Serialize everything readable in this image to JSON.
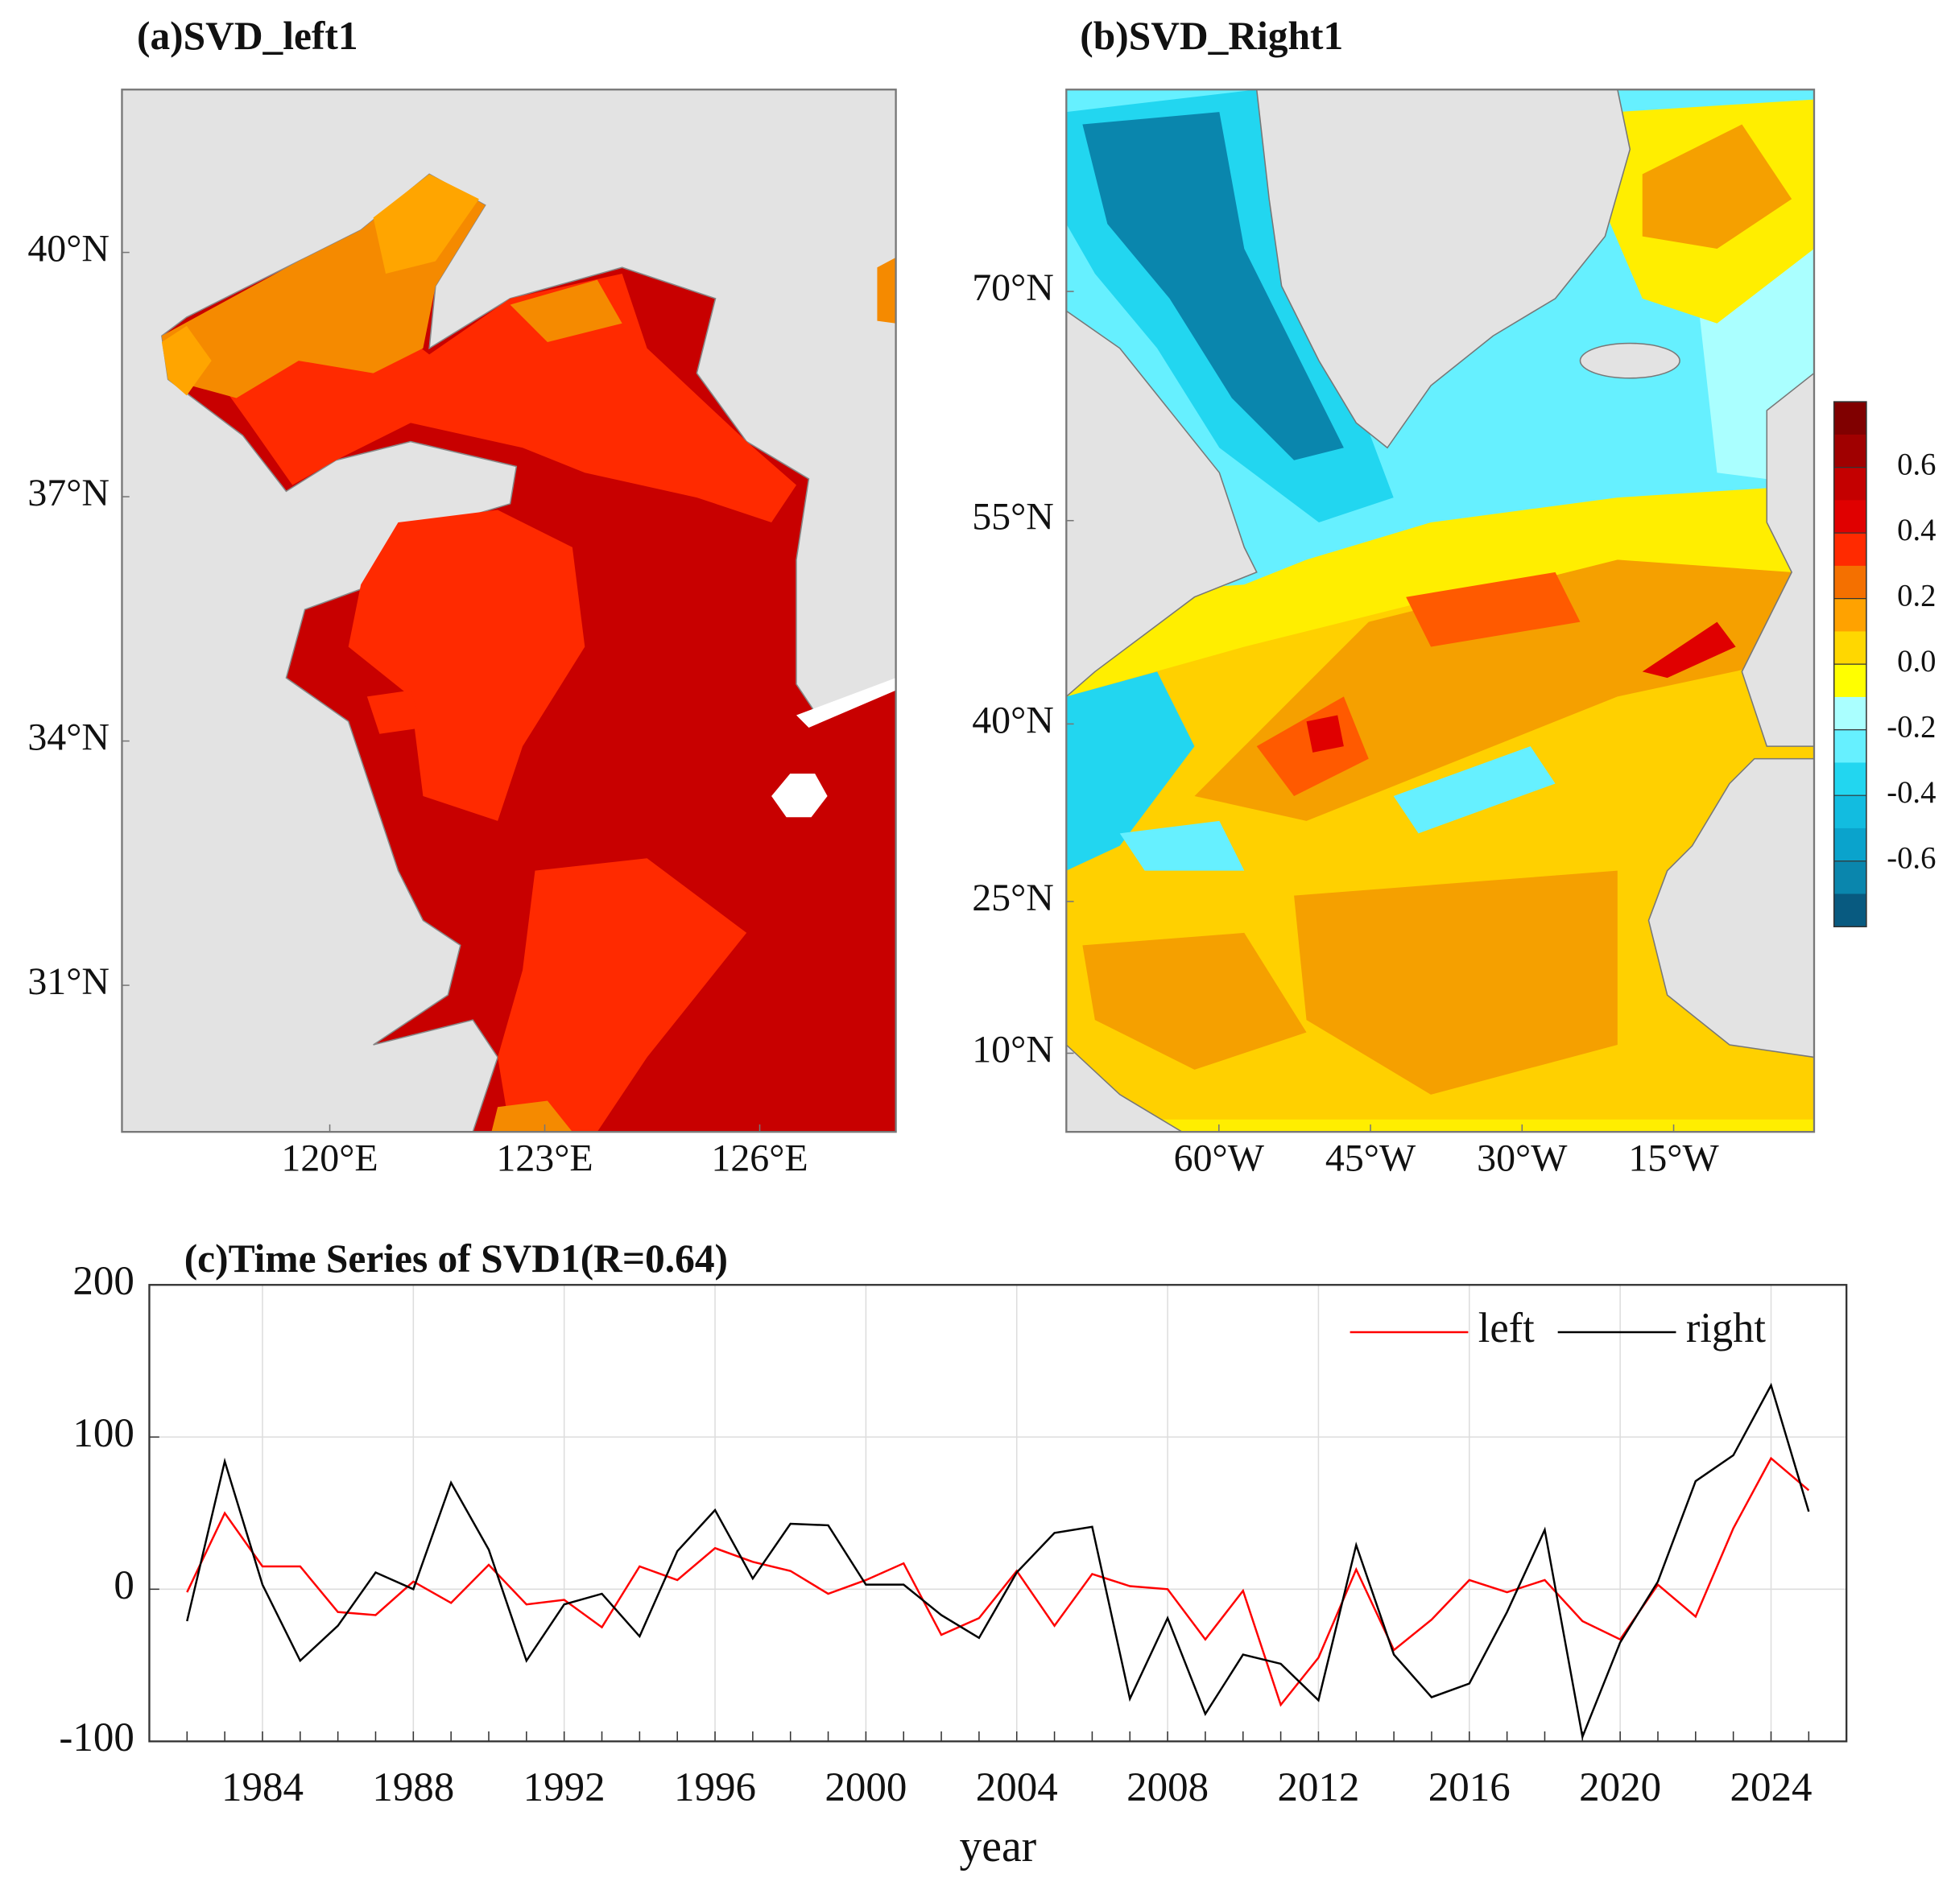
{
  "chart_data": [
    {
      "type": "contour_map",
      "title": "(a)SVD_left1",
      "xlim": [
        117.1,
        127.9
      ],
      "ylim": [
        29.2,
        42
      ],
      "xticks": [
        {
          "value": 120,
          "label": "120°E"
        },
        {
          "value": 123,
          "label": "123°E"
        },
        {
          "value": 126,
          "label": "126°E"
        }
      ],
      "yticks": [
        {
          "value": 40,
          "label": "40°N"
        },
        {
          "value": 37,
          "label": "37°N"
        },
        {
          "value": 34,
          "label": "34°N"
        },
        {
          "value": 31,
          "label": "31°N"
        }
      ]
    },
    {
      "type": "contour_map",
      "title": "(b)SVD_Right1",
      "xlim": [
        -75.1,
        -1.1
      ],
      "ylim": [
        1,
        82
      ],
      "xticks": [
        {
          "value": -60,
          "label": "60°W"
        },
        {
          "value": -45,
          "label": "45°W"
        },
        {
          "value": -30,
          "label": "30°W"
        },
        {
          "value": -15,
          "label": "15°W"
        }
      ],
      "yticks": [
        {
          "value": 70,
          "label": "70°N"
        },
        {
          "value": 55,
          "label": "55°N"
        },
        {
          "value": 40,
          "label": "40°N"
        },
        {
          "value": 25,
          "label": "25°N"
        },
        {
          "value": 10,
          "label": "10°N"
        }
      ],
      "colorbar": {
        "clim": [
          -0.8,
          0.8
        ],
        "ticks": [
          0.6,
          0.4,
          0.2,
          {
            "value": 0,
            "label": "0.0"
          },
          -0.2,
          -0.4,
          -0.6
        ],
        "colors": [
          "#800000",
          "#a00000",
          "#c40000",
          "#e00000",
          "#ff2a00",
          "#f47000",
          "#ffa200",
          "#ffd700",
          "#ffff00",
          "#aaffff",
          "#66f0ff",
          "#22d6f0",
          "#12bce0",
          "#0aa3cc",
          "#0a86ad",
          "#085a80"
        ]
      }
    },
    {
      "type": "line",
      "title": "(c)Time Series of SVD1(R=0.64)",
      "xlabel": "year",
      "x": [
        1982,
        1983,
        1984,
        1985,
        1986,
        1987,
        1988,
        1989,
        1990,
        1991,
        1992,
        1993,
        1994,
        1995,
        1996,
        1997,
        1998,
        1999,
        2000,
        2001,
        2002,
        2003,
        2004,
        2005,
        2006,
        2007,
        2008,
        2009,
        2010,
        2011,
        2012,
        2013,
        2014,
        2015,
        2016,
        2017,
        2018,
        2019,
        2020,
        2021,
        2022,
        2023,
        2024,
        2025
      ],
      "series": [
        {
          "name": "left",
          "color": "#ff0000",
          "values": [
            -2,
            50,
            15,
            15,
            -15,
            -17,
            5,
            -9,
            16,
            -10,
            -7,
            -25,
            15,
            6,
            27,
            18,
            12,
            -3,
            6,
            17,
            -30,
            -19,
            12,
            -24,
            10,
            2,
            0,
            -33,
            -1,
            -76,
            -45,
            13,
            -40,
            -20,
            6,
            -2,
            6,
            -21,
            -33,
            3,
            -18,
            40,
            86,
            65
          ]
        },
        {
          "name": "right",
          "color": "#000000",
          "values": [
            -21,
            84,
            3,
            -47,
            -24,
            11,
            0,
            70,
            26,
            -47,
            -10,
            -3,
            -31,
            25,
            52,
            7,
            43,
            42,
            3,
            3,
            -17,
            -32,
            11,
            37,
            41,
            -72,
            -19,
            -82,
            -43,
            -49,
            -73,
            29,
            -43,
            -71,
            -62,
            -15,
            39,
            -97,
            -35,
            5,
            71,
            88,
            134,
            51
          ]
        }
      ],
      "xlim": [
        1981,
        2026
      ],
      "ylim": [
        -100,
        200
      ],
      "xticks": [
        1984,
        1988,
        1992,
        1996,
        2000,
        2004,
        2008,
        2012,
        2016,
        2020,
        2024
      ],
      "yticks": [
        -100,
        0,
        100,
        200
      ],
      "grid": true,
      "legend": "upper right"
    }
  ]
}
